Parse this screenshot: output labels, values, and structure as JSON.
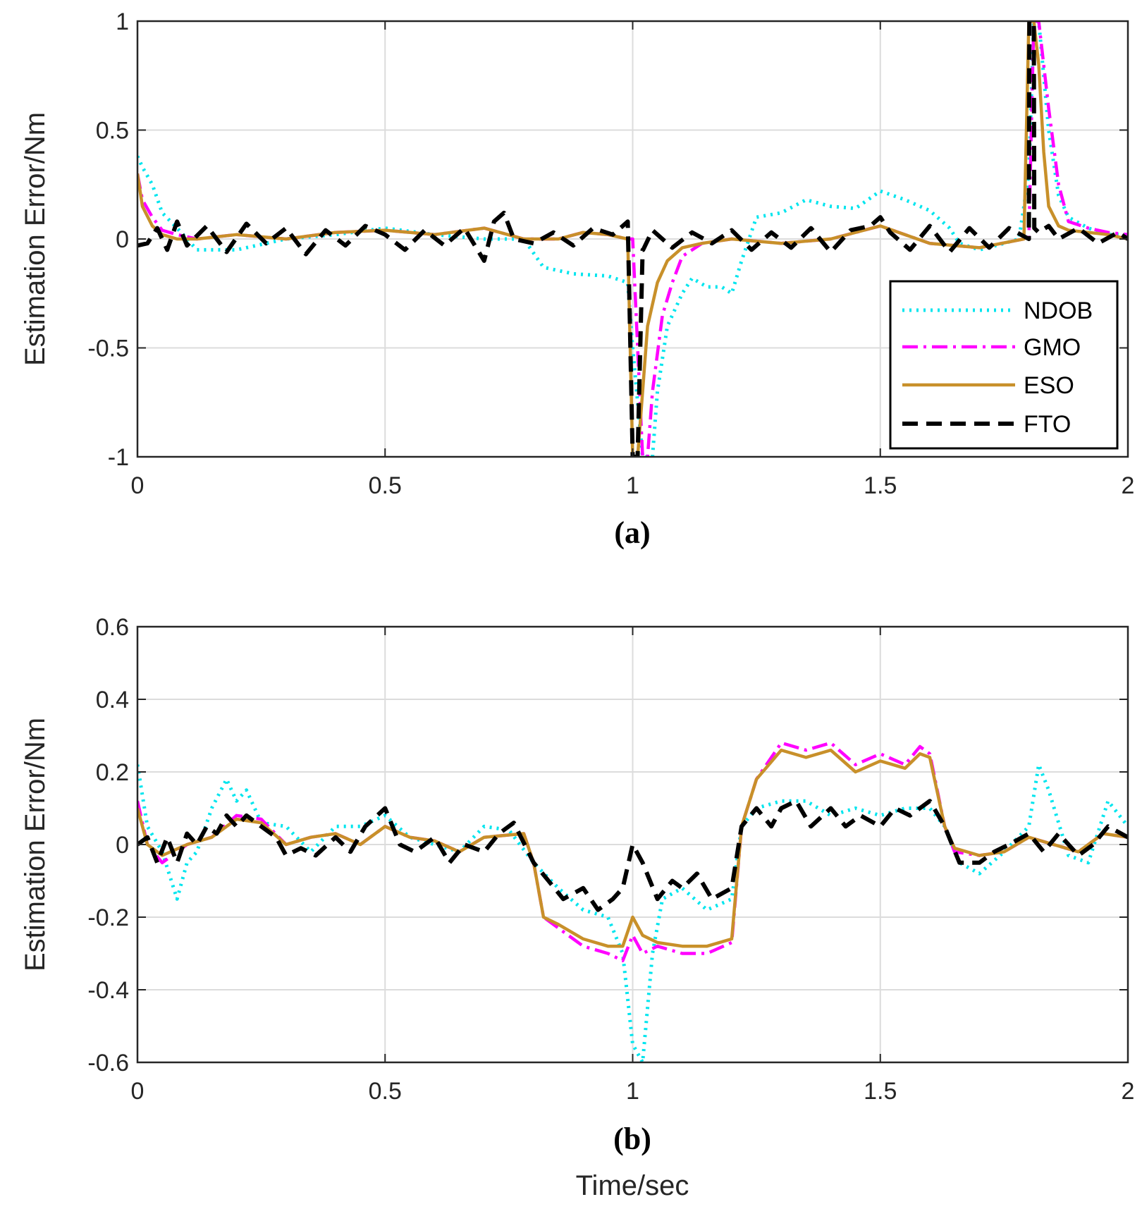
{
  "figure": {
    "x_axis_label": "Time/sec"
  },
  "legend": [
    {
      "label": "NDOB",
      "color": "#00e5ee",
      "dash": "dot"
    },
    {
      "label": "GMO",
      "color": "#ff00ff",
      "dash": "dashdot"
    },
    {
      "label": "ESO",
      "color": "#c8902a",
      "dash": "solid"
    },
    {
      "label": "FTO",
      "color": "#000000",
      "dash": "dash"
    }
  ],
  "chart_data": [
    {
      "type": "line",
      "panel_label": "(a)",
      "ylabel": "Estimation Error/Nm",
      "xlabel": "",
      "xlim": [
        0,
        2
      ],
      "ylim": [
        -1,
        1
      ],
      "xticks": [
        "0",
        "0.5",
        "1",
        "1.5",
        "2"
      ],
      "yticks": [
        "-1",
        "-0.5",
        "0",
        "0.5",
        "1"
      ],
      "grid": true,
      "legend_position": "bottom-right",
      "series": [
        {
          "name": "NDOB",
          "x": [
            0,
            0.01,
            0.03,
            0.05,
            0.08,
            0.12,
            0.2,
            0.3,
            0.4,
            0.5,
            0.6,
            0.7,
            0.78,
            0.82,
            0.88,
            0.95,
            0.99,
            1.0,
            1.02,
            1.04,
            1.05,
            1.07,
            1.1,
            1.12,
            1.15,
            1.18,
            1.2,
            1.22,
            1.25,
            1.3,
            1.35,
            1.4,
            1.45,
            1.5,
            1.55,
            1.6,
            1.64,
            1.66,
            1.7,
            1.75,
            1.78,
            1.8,
            1.81,
            1.82,
            1.84,
            1.86,
            1.88,
            1.92,
            1.96,
            2.0
          ],
          "y": [
            0.38,
            0.33,
            0.25,
            0.12,
            0.05,
            -0.05,
            -0.05,
            0.0,
            0.02,
            0.05,
            0.02,
            0.0,
            0.0,
            -0.13,
            -0.16,
            -0.17,
            -0.2,
            -0.5,
            -1.0,
            -1.0,
            -0.7,
            -0.4,
            -0.25,
            -0.18,
            -0.22,
            -0.22,
            -0.25,
            -0.1,
            0.1,
            0.12,
            0.18,
            0.15,
            0.14,
            0.22,
            0.18,
            0.13,
            0.05,
            -0.02,
            -0.05,
            -0.02,
            0.0,
            0.3,
            1.0,
            1.0,
            0.5,
            0.2,
            0.1,
            0.05,
            0.02,
            0.02
          ]
        },
        {
          "name": "GMO",
          "x": [
            0,
            0.01,
            0.03,
            0.05,
            0.08,
            0.12,
            0.2,
            0.3,
            0.4,
            0.5,
            0.6,
            0.7,
            0.78,
            0.85,
            0.9,
            0.95,
            0.99,
            1.0,
            1.02,
            1.03,
            1.04,
            1.06,
            1.08,
            1.1,
            1.14,
            1.2,
            1.3,
            1.4,
            1.5,
            1.6,
            1.7,
            1.79,
            1.8,
            1.81,
            1.82,
            1.84,
            1.86,
            1.88,
            1.92,
            1.96,
            2.0
          ],
          "y": [
            0.3,
            0.18,
            0.1,
            0.04,
            0.02,
            0.0,
            0.02,
            0.0,
            0.03,
            0.04,
            0.02,
            0.05,
            0.0,
            0.0,
            0.03,
            0.02,
            0.0,
            0.0,
            -1.0,
            -1.0,
            -0.7,
            -0.35,
            -0.2,
            -0.08,
            -0.02,
            0.0,
            -0.02,
            0.0,
            0.06,
            -0.02,
            -0.04,
            0.0,
            0.0,
            1.0,
            1.0,
            0.6,
            0.25,
            0.08,
            0.05,
            0.03,
            0.02
          ]
        },
        {
          "name": "ESO",
          "x": [
            0,
            0.01,
            0.03,
            0.05,
            0.08,
            0.12,
            0.2,
            0.3,
            0.4,
            0.5,
            0.6,
            0.7,
            0.78,
            0.85,
            0.9,
            0.95,
            0.99,
            1.0,
            1.01,
            1.02,
            1.03,
            1.05,
            1.07,
            1.1,
            1.14,
            1.2,
            1.3,
            1.4,
            1.5,
            1.6,
            1.7,
            1.79,
            1.8,
            1.81,
            1.82,
            1.83,
            1.84,
            1.86,
            1.88,
            1.92,
            1.96,
            2.0
          ],
          "y": [
            0.3,
            0.15,
            0.06,
            0.02,
            0.0,
            0.0,
            0.02,
            0.0,
            0.03,
            0.04,
            0.02,
            0.05,
            0.0,
            0.0,
            0.03,
            0.02,
            0.0,
            -1.0,
            -1.0,
            -0.7,
            -0.4,
            -0.2,
            -0.1,
            -0.04,
            -0.02,
            0.0,
            -0.02,
            0.0,
            0.06,
            -0.02,
            -0.04,
            0.0,
            1.0,
            1.0,
            0.8,
            0.4,
            0.15,
            0.06,
            0.04,
            0.03,
            0.02,
            0.0
          ]
        },
        {
          "name": "FTO",
          "x": [
            0,
            0.02,
            0.04,
            0.06,
            0.08,
            0.1,
            0.14,
            0.18,
            0.22,
            0.26,
            0.3,
            0.34,
            0.38,
            0.42,
            0.46,
            0.5,
            0.54,
            0.58,
            0.62,
            0.66,
            0.7,
            0.72,
            0.74,
            0.76,
            0.8,
            0.84,
            0.88,
            0.92,
            0.96,
            0.99,
            1.0,
            1.001,
            1.01,
            1.02,
            1.021,
            1.04,
            1.08,
            1.12,
            1.16,
            1.2,
            1.24,
            1.28,
            1.32,
            1.36,
            1.4,
            1.44,
            1.48,
            1.5,
            1.52,
            1.56,
            1.6,
            1.64,
            1.68,
            1.72,
            1.76,
            1.8,
            1.801,
            1.805,
            1.81,
            1.811,
            1.82,
            1.84,
            1.86,
            1.9,
            1.94,
            1.98,
            2.0
          ],
          "y": [
            -0.03,
            -0.02,
            0.05,
            -0.05,
            0.08,
            -0.03,
            0.06,
            -0.06,
            0.07,
            -0.02,
            0.05,
            -0.07,
            0.04,
            -0.03,
            0.06,
            0.02,
            -0.05,
            0.04,
            -0.03,
            0.05,
            -0.1,
            0.08,
            0.12,
            0.0,
            -0.02,
            0.03,
            -0.03,
            0.05,
            0.02,
            0.08,
            -1.0,
            -1.0,
            -1.0,
            -0.05,
            -0.05,
            0.04,
            -0.04,
            0.03,
            -0.02,
            0.04,
            -0.05,
            0.03,
            -0.04,
            0.05,
            -0.06,
            0.04,
            0.06,
            0.1,
            0.03,
            -0.05,
            0.06,
            -0.06,
            0.05,
            -0.04,
            0.05,
            0.0,
            1.0,
            1.0,
            1.0,
            0.05,
            0.03,
            0.06,
            0.0,
            0.05,
            -0.02,
            0.03,
            0.0
          ]
        }
      ]
    },
    {
      "type": "line",
      "panel_label": "(b)",
      "ylabel": "Estimation Error/Nm",
      "xlabel": "Time/sec",
      "xlim": [
        0,
        2
      ],
      "ylim": [
        -0.6,
        0.6
      ],
      "xticks": [
        "0",
        "0.5",
        "1",
        "1.5",
        "2"
      ],
      "yticks": [
        "-0.6",
        "-0.4",
        "-0.2",
        "0",
        "0.2",
        "0.4",
        "0.6"
      ],
      "grid": true,
      "series": [
        {
          "name": "NDOB",
          "x": [
            0,
            0.02,
            0.05,
            0.08,
            0.1,
            0.12,
            0.15,
            0.18,
            0.2,
            0.22,
            0.25,
            0.3,
            0.35,
            0.4,
            0.45,
            0.5,
            0.55,
            0.6,
            0.65,
            0.7,
            0.75,
            0.8,
            0.85,
            0.9,
            0.95,
            0.98,
            1.0,
            1.02,
            1.04,
            1.06,
            1.1,
            1.15,
            1.2,
            1.22,
            1.25,
            1.3,
            1.35,
            1.4,
            1.45,
            1.5,
            1.55,
            1.6,
            1.63,
            1.66,
            1.7,
            1.75,
            1.8,
            1.82,
            1.84,
            1.88,
            1.92,
            1.96,
            2.0
          ],
          "y": [
            0.22,
            0.05,
            -0.02,
            -0.15,
            -0.05,
            -0.02,
            0.1,
            0.18,
            0.12,
            0.15,
            0.06,
            0.05,
            -0.02,
            0.05,
            0.05,
            0.08,
            0.02,
            0.0,
            -0.02,
            0.05,
            0.04,
            -0.05,
            -0.12,
            -0.18,
            -0.2,
            -0.3,
            -0.55,
            -0.6,
            -0.3,
            -0.15,
            -0.12,
            -0.18,
            -0.15,
            0.05,
            0.1,
            0.12,
            0.12,
            0.08,
            0.1,
            0.08,
            0.1,
            0.1,
            0.05,
            -0.05,
            -0.08,
            -0.02,
            0.05,
            0.22,
            0.15,
            -0.03,
            -0.05,
            0.12,
            0.05
          ]
        },
        {
          "name": "GMO",
          "x": [
            0,
            0.02,
            0.05,
            0.1,
            0.15,
            0.2,
            0.25,
            0.3,
            0.35,
            0.4,
            0.45,
            0.5,
            0.55,
            0.6,
            0.65,
            0.7,
            0.78,
            0.8,
            0.82,
            0.85,
            0.9,
            0.95,
            0.98,
            1.0,
            1.02,
            1.05,
            1.1,
            1.15,
            1.2,
            1.22,
            1.25,
            1.3,
            1.35,
            1.4,
            1.45,
            1.5,
            1.55,
            1.58,
            1.6,
            1.63,
            1.65,
            1.7,
            1.75,
            1.8,
            1.85,
            1.9,
            1.95,
            2.0
          ],
          "y": [
            0.12,
            0.0,
            -0.05,
            0.0,
            0.02,
            0.08,
            0.07,
            0.0,
            0.02,
            0.03,
            0.0,
            0.05,
            0.02,
            0.01,
            -0.02,
            0.02,
            0.03,
            -0.05,
            -0.2,
            -0.23,
            -0.28,
            -0.3,
            -0.32,
            -0.25,
            -0.3,
            -0.28,
            -0.3,
            -0.3,
            -0.27,
            0.05,
            0.18,
            0.28,
            0.26,
            0.28,
            0.22,
            0.25,
            0.22,
            0.27,
            0.25,
            0.05,
            -0.02,
            -0.03,
            -0.02,
            0.02,
            0.0,
            -0.02,
            0.03,
            0.02
          ]
        },
        {
          "name": "ESO",
          "x": [
            0,
            0.02,
            0.05,
            0.1,
            0.15,
            0.2,
            0.25,
            0.3,
            0.35,
            0.4,
            0.45,
            0.5,
            0.55,
            0.6,
            0.65,
            0.7,
            0.78,
            0.8,
            0.82,
            0.85,
            0.9,
            0.95,
            0.98,
            1.0,
            1.02,
            1.05,
            1.1,
            1.15,
            1.2,
            1.22,
            1.25,
            1.3,
            1.35,
            1.4,
            1.45,
            1.5,
            1.55,
            1.58,
            1.6,
            1.63,
            1.65,
            1.7,
            1.75,
            1.8,
            1.85,
            1.9,
            1.95,
            2.0
          ],
          "y": [
            0.1,
            0.0,
            -0.03,
            0.0,
            0.02,
            0.07,
            0.06,
            0.0,
            0.02,
            0.03,
            0.0,
            0.05,
            0.02,
            0.01,
            -0.02,
            0.02,
            0.03,
            -0.05,
            -0.2,
            -0.22,
            -0.26,
            -0.28,
            -0.28,
            -0.2,
            -0.25,
            -0.27,
            -0.28,
            -0.28,
            -0.26,
            0.05,
            0.18,
            0.26,
            0.24,
            0.26,
            0.2,
            0.23,
            0.21,
            0.25,
            0.24,
            0.05,
            -0.01,
            -0.03,
            -0.02,
            0.02,
            0.0,
            -0.02,
            0.03,
            0.02
          ]
        },
        {
          "name": "FTO",
          "x": [
            0,
            0.02,
            0.04,
            0.06,
            0.08,
            0.1,
            0.12,
            0.14,
            0.16,
            0.18,
            0.2,
            0.22,
            0.25,
            0.28,
            0.3,
            0.33,
            0.36,
            0.4,
            0.43,
            0.46,
            0.5,
            0.53,
            0.56,
            0.6,
            0.63,
            0.66,
            0.7,
            0.73,
            0.76,
            0.8,
            0.83,
            0.86,
            0.9,
            0.93,
            0.96,
            0.98,
            1.0,
            1.02,
            1.05,
            1.08,
            1.1,
            1.13,
            1.16,
            1.2,
            1.22,
            1.25,
            1.28,
            1.3,
            1.33,
            1.36,
            1.4,
            1.43,
            1.46,
            1.5,
            1.53,
            1.56,
            1.6,
            1.63,
            1.66,
            1.7,
            1.73,
            1.76,
            1.8,
            1.83,
            1.86,
            1.9,
            1.93,
            1.96,
            2.0
          ],
          "y": [
            0.0,
            0.02,
            -0.05,
            0.02,
            -0.05,
            0.03,
            0.0,
            0.05,
            0.03,
            0.08,
            0.05,
            0.08,
            0.05,
            0.02,
            -0.03,
            -0.01,
            -0.03,
            0.02,
            -0.02,
            0.05,
            0.1,
            0.0,
            -0.02,
            0.02,
            -0.05,
            0.0,
            -0.02,
            0.03,
            0.06,
            -0.05,
            -0.1,
            -0.15,
            -0.12,
            -0.18,
            -0.15,
            -0.12,
            0.0,
            -0.05,
            -0.15,
            -0.1,
            -0.12,
            -0.08,
            -0.15,
            -0.12,
            0.05,
            0.1,
            0.05,
            0.1,
            0.12,
            0.05,
            0.1,
            0.05,
            0.08,
            0.05,
            0.1,
            0.08,
            0.12,
            0.05,
            -0.05,
            -0.05,
            -0.02,
            0.0,
            0.03,
            -0.02,
            0.03,
            -0.03,
            0.0,
            0.05,
            0.02
          ]
        }
      ]
    }
  ]
}
